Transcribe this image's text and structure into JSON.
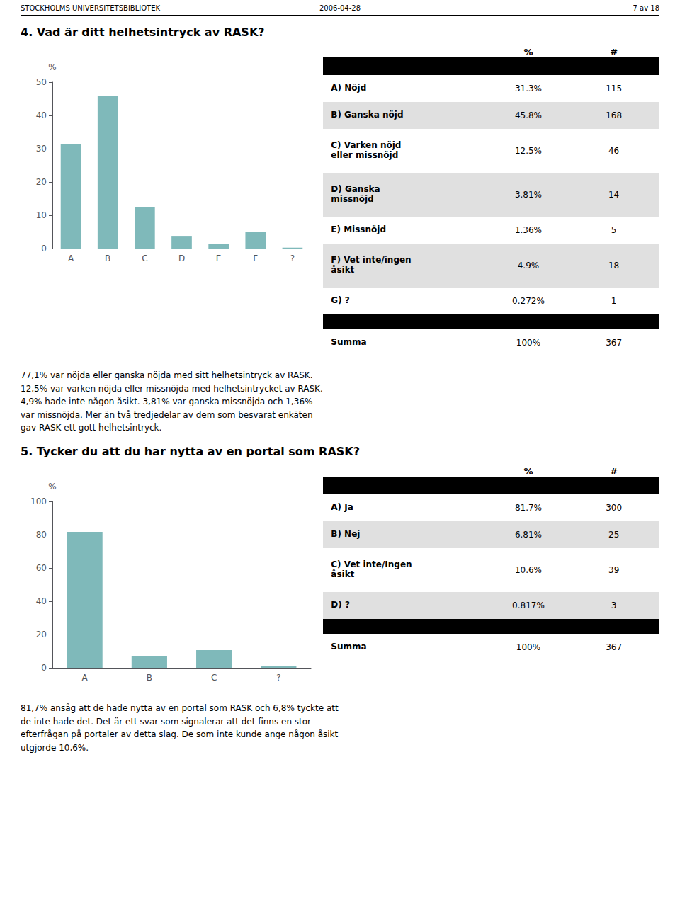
{
  "header": {
    "left": "STOCKHOLMS UNIVERSITETSBIBLIOTEK",
    "center": "2006-04-28",
    "right": "7 av 18"
  },
  "chart_data": [
    {
      "type": "bar",
      "title": "4. Vad är ditt helhetsintryck av RASK?",
      "categories": [
        "A",
        "B",
        "C",
        "D",
        "E",
        "F",
        "?"
      ],
      "values": [
        31.3,
        45.8,
        12.5,
        3.81,
        1.36,
        4.9,
        0.272
      ],
      "color": "#7fb9ba",
      "ylabel": "%",
      "ylim": [
        0,
        50
      ],
      "yticks": [
        0,
        10,
        20,
        30,
        40,
        50
      ],
      "grid": false,
      "table": {
        "columns": [
          "%",
          "#"
        ],
        "rows": [
          {
            "label": "A) Nöjd",
            "share": {
              "value": 31.3,
              "label": "31.3%"
            },
            "count": 115,
            "summary": false
          },
          {
            "label": "B) Ganska nöjd",
            "share": {
              "value": 45.8,
              "label": "45.8%"
            },
            "count": 168,
            "summary": false
          },
          {
            "label": "C) Varken nöjd\neller missnöjd",
            "share": {
              "value": 12.5,
              "label": "12.5%"
            },
            "count": 46,
            "summary": false
          },
          {
            "label": "D) Ganska\nmissnöjd",
            "share": {
              "value": 3.81,
              "label": "3.81%"
            },
            "count": 14,
            "summary": false
          },
          {
            "label": "E) Missnöjd",
            "share": {
              "value": 1.36,
              "label": "1.36%"
            },
            "count": 5,
            "summary": false
          },
          {
            "label": "F) Vet inte/ingen\nåsikt",
            "share": {
              "value": 4.9,
              "label": "4.9%"
            },
            "count": 18,
            "summary": false
          },
          {
            "label": "G) ?",
            "share": {
              "value": 0.272,
              "label": "0.272%"
            },
            "count": 1,
            "summary": false
          },
          {
            "label": "Summa",
            "share": {
              "value": 100,
              "label": "100%"
            },
            "count": 367,
            "summary": true
          }
        ]
      },
      "text": "77,1% var nöjda eller ganska nöjda med sitt helhetsintryck av RASK.\n12,5% var varken nöjda eller missnöjda med helhetsintrycket av RASK.\n4,9% hade inte någon åsikt. 3,81% var ganska missnöjda och 1,36%\nvar missnöjda.  Mer än två tredjedelar av dem som besvarat enkäten\ngav RASK ett gott helhetsintryck."
    },
    {
      "type": "bar",
      "title": "5. Tycker du att du har nytta av en portal som RASK?",
      "categories": [
        "A",
        "B",
        "C",
        "?"
      ],
      "values": [
        81.7,
        6.81,
        10.6,
        0.817
      ],
      "color": "#7fb9ba",
      "ylabel": "%",
      "ylim": [
        0,
        100
      ],
      "yticks": [
        0,
        20,
        40,
        60,
        80,
        100
      ],
      "grid": false,
      "table": {
        "columns": [
          "%",
          "#"
        ],
        "rows": [
          {
            "label": "A) Ja",
            "share": {
              "value": 81.7,
              "label": "81.7%"
            },
            "count": 300,
            "summary": false
          },
          {
            "label": "B) Nej",
            "share": {
              "value": 6.81,
              "label": "6.81%"
            },
            "count": 25,
            "summary": false
          },
          {
            "label": "C) Vet inte/Ingen\nåsikt",
            "share": {
              "value": 10.6,
              "label": "10.6%"
            },
            "count": 39,
            "summary": false
          },
          {
            "label": "D) ?",
            "share": {
              "value": 0.817,
              "label": "0.817%"
            },
            "count": 3,
            "summary": false
          },
          {
            "label": "Summa",
            "share": {
              "value": 100,
              "label": "100%"
            },
            "count": 367,
            "summary": true
          }
        ]
      },
      "text": "81,7% ansåg att de hade nytta av en portal som RASK och 6,8% tyckte att\nde inte hade det. Det är ett svar som signalerar att det finns en stor\nefterfrågan på portaler av detta slag. De som inte kunde ange någon åsikt\nutgjorde 10,6%."
    }
  ]
}
